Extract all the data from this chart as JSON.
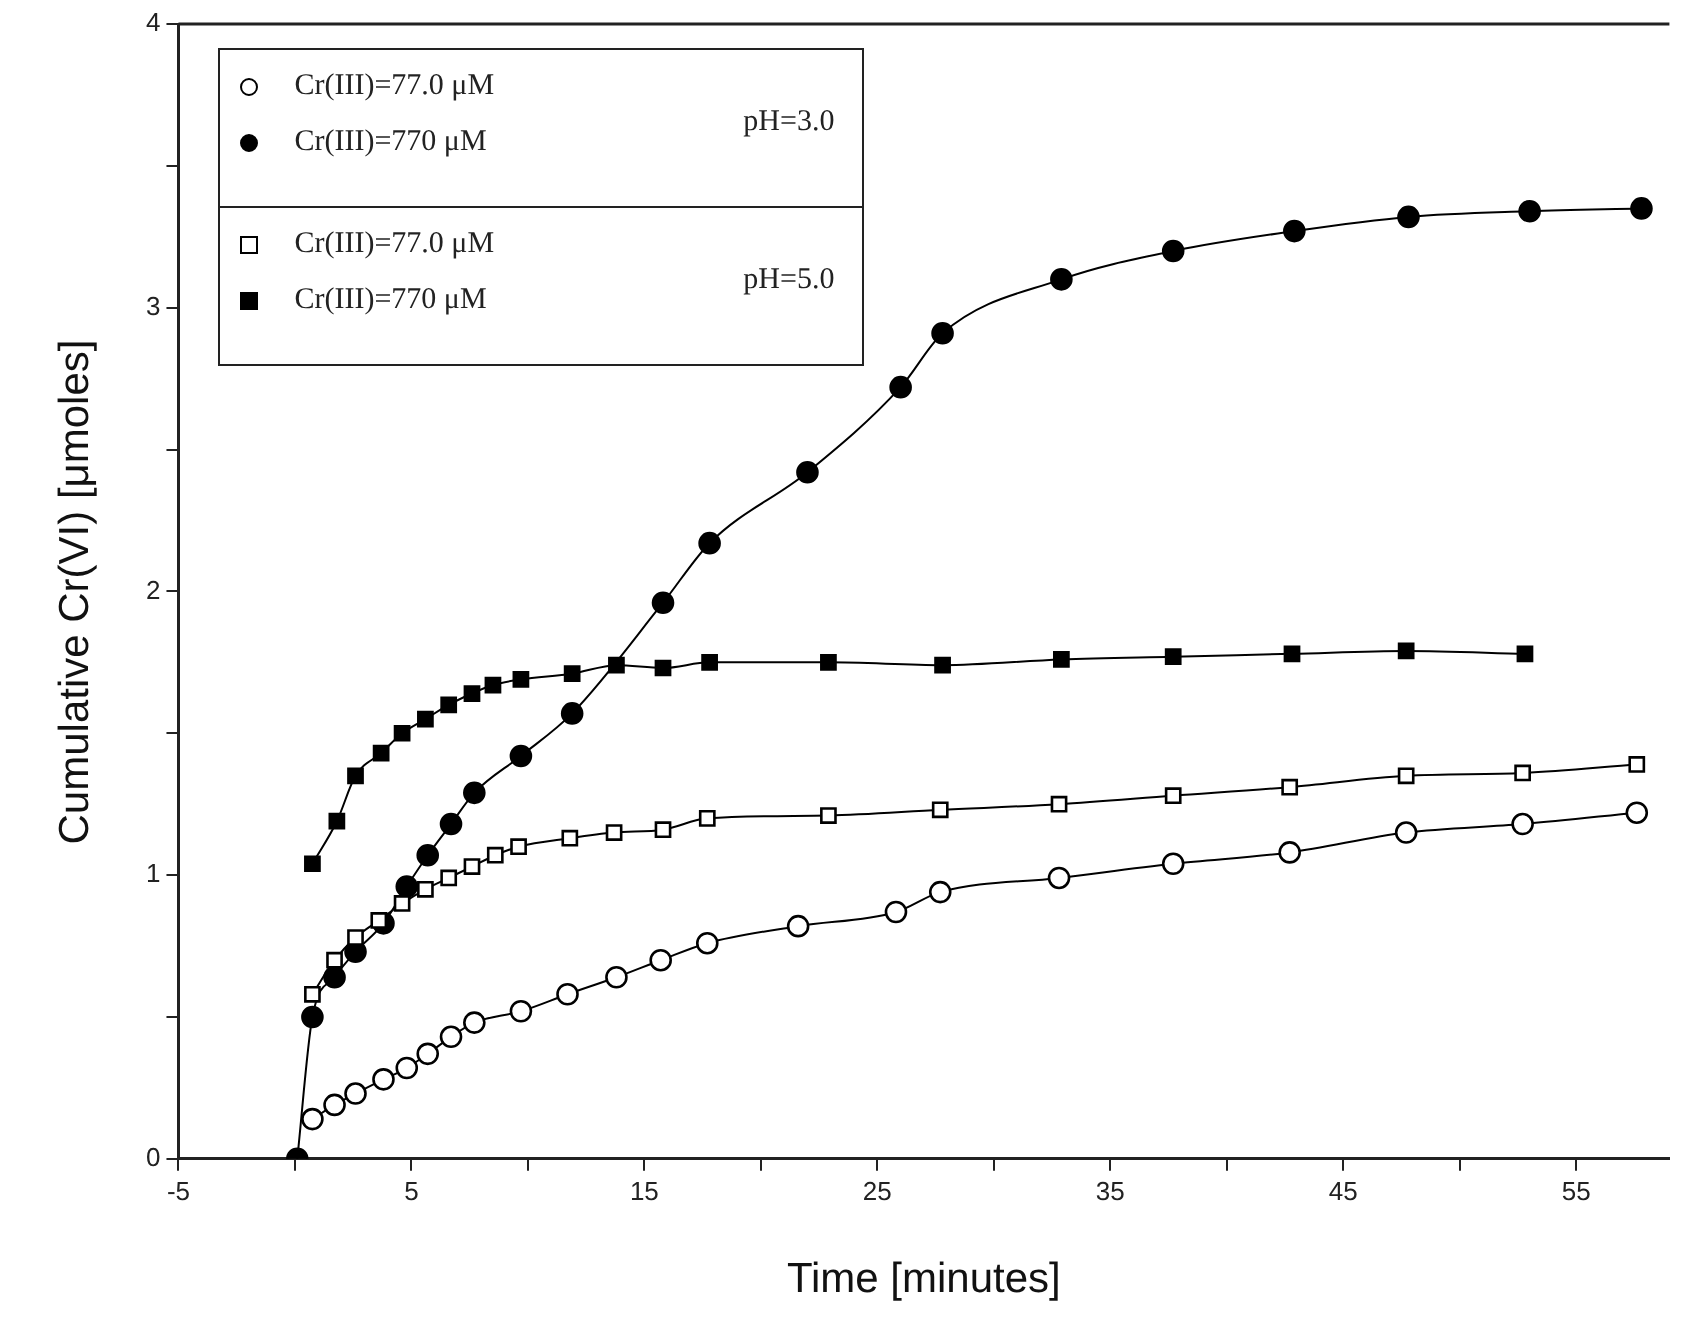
{
  "chart_data": {
    "type": "line",
    "xlabel": "Time [minutes]",
    "ylabel": "Cumulative Cr(VI)  [μmoles]",
    "xlim": [
      -5,
      59
    ],
    "ylim": [
      0,
      4
    ],
    "xticks": [
      -5,
      {
        "value": 0,
        "label": null
      },
      5,
      {
        "value": 10,
        "label": null
      },
      15,
      {
        "value": 20,
        "label": null
      },
      25,
      {
        "value": 30,
        "label": null
      },
      35,
      {
        "value": 40,
        "label": null
      },
      45,
      {
        "value": 50,
        "label": null
      },
      55
    ],
    "yticks": [
      0,
      {
        "value": 0.5,
        "label": null
      },
      1,
      {
        "value": 1.5,
        "label": null
      },
      2,
      {
        "value": 2.5,
        "label": null
      },
      3,
      {
        "value": 3.5,
        "label": null
      },
      4
    ],
    "grid": false,
    "legend": "top left",
    "line_style": "solid",
    "annotations": [
      "pH=3.0",
      "pH=5.0"
    ],
    "series": [
      {
        "name": "Cr(III)=77.0 μM",
        "color": "#000000",
        "marker": "circle",
        "x": [
          0.75,
          1.7,
          2.6,
          3.8,
          4.8,
          5.7,
          6.7,
          7.7,
          9.7,
          11.7,
          13.8,
          15.7,
          17.7,
          21.6,
          25.8,
          27.7,
          32.8,
          37.7,
          42.7,
          47.7,
          52.7,
          57.6
        ],
        "values": [
          0.14,
          0.19,
          0.23,
          0.28,
          0.32,
          0.37,
          0.43,
          0.48,
          0.52,
          0.58,
          0.64,
          0.7,
          0.76,
          0.82,
          0.87,
          0.94,
          0.99,
          1.04,
          1.08,
          1.15,
          1.18,
          1.22
        ]
      },
      {
        "name": "Cr(III)=770 μM",
        "color": "#000000",
        "marker": "circle",
        "x": [
          0.1,
          0.75,
          1.7,
          2.6,
          3.8,
          4.8,
          5.7,
          6.7,
          7.7,
          9.7,
          11.9,
          15.8,
          17.8,
          22,
          26,
          27.8,
          32.9,
          37.7,
          42.9,
          47.8,
          53,
          57.8
        ],
        "values": [
          0,
          0.5,
          0.64,
          0.73,
          0.83,
          0.96,
          1.07,
          1.18,
          1.29,
          1.42,
          1.57,
          1.96,
          2.17,
          2.42,
          2.72,
          2.91,
          3.1,
          3.2,
          3.27,
          3.32,
          3.34,
          3.35
        ]
      },
      {
        "name": "Cr(III)=77.0 μM",
        "color": "#000000",
        "marker": "square",
        "x": [
          0.75,
          1.7,
          2.6,
          3.6,
          4.6,
          5.6,
          6.6,
          7.6,
          8.6,
          9.6,
          11.8,
          13.7,
          15.8,
          17.7,
          22.9,
          27.7,
          32.8,
          37.7,
          42.7,
          47.7,
          52.7,
          57.6
        ],
        "values": [
          0.58,
          0.7,
          0.78,
          0.84,
          0.9,
          0.95,
          0.99,
          1.03,
          1.07,
          1.1,
          1.13,
          1.15,
          1.16,
          1.2,
          1.21,
          1.23,
          1.25,
          1.28,
          1.31,
          1.35,
          1.36,
          1.39
        ]
      },
      {
        "name": "Cr(III)=770 μM",
        "color": "#000000",
        "marker": "square",
        "x": [
          0.75,
          1.8,
          2.6,
          3.7,
          4.6,
          5.6,
          6.6,
          7.6,
          8.5,
          9.7,
          11.9,
          13.8,
          15.8,
          17.8,
          22.9,
          27.8,
          32.9,
          37.7,
          42.8,
          47.7,
          52.8
        ],
        "values": [
          1.04,
          1.19,
          1.35,
          1.43,
          1.5,
          1.55,
          1.6,
          1.64,
          1.67,
          1.69,
          1.71,
          1.74,
          1.73,
          1.75,
          1.75,
          1.74,
          1.76,
          1.77,
          1.78,
          1.79,
          1.78
        ]
      }
    ]
  }
}
